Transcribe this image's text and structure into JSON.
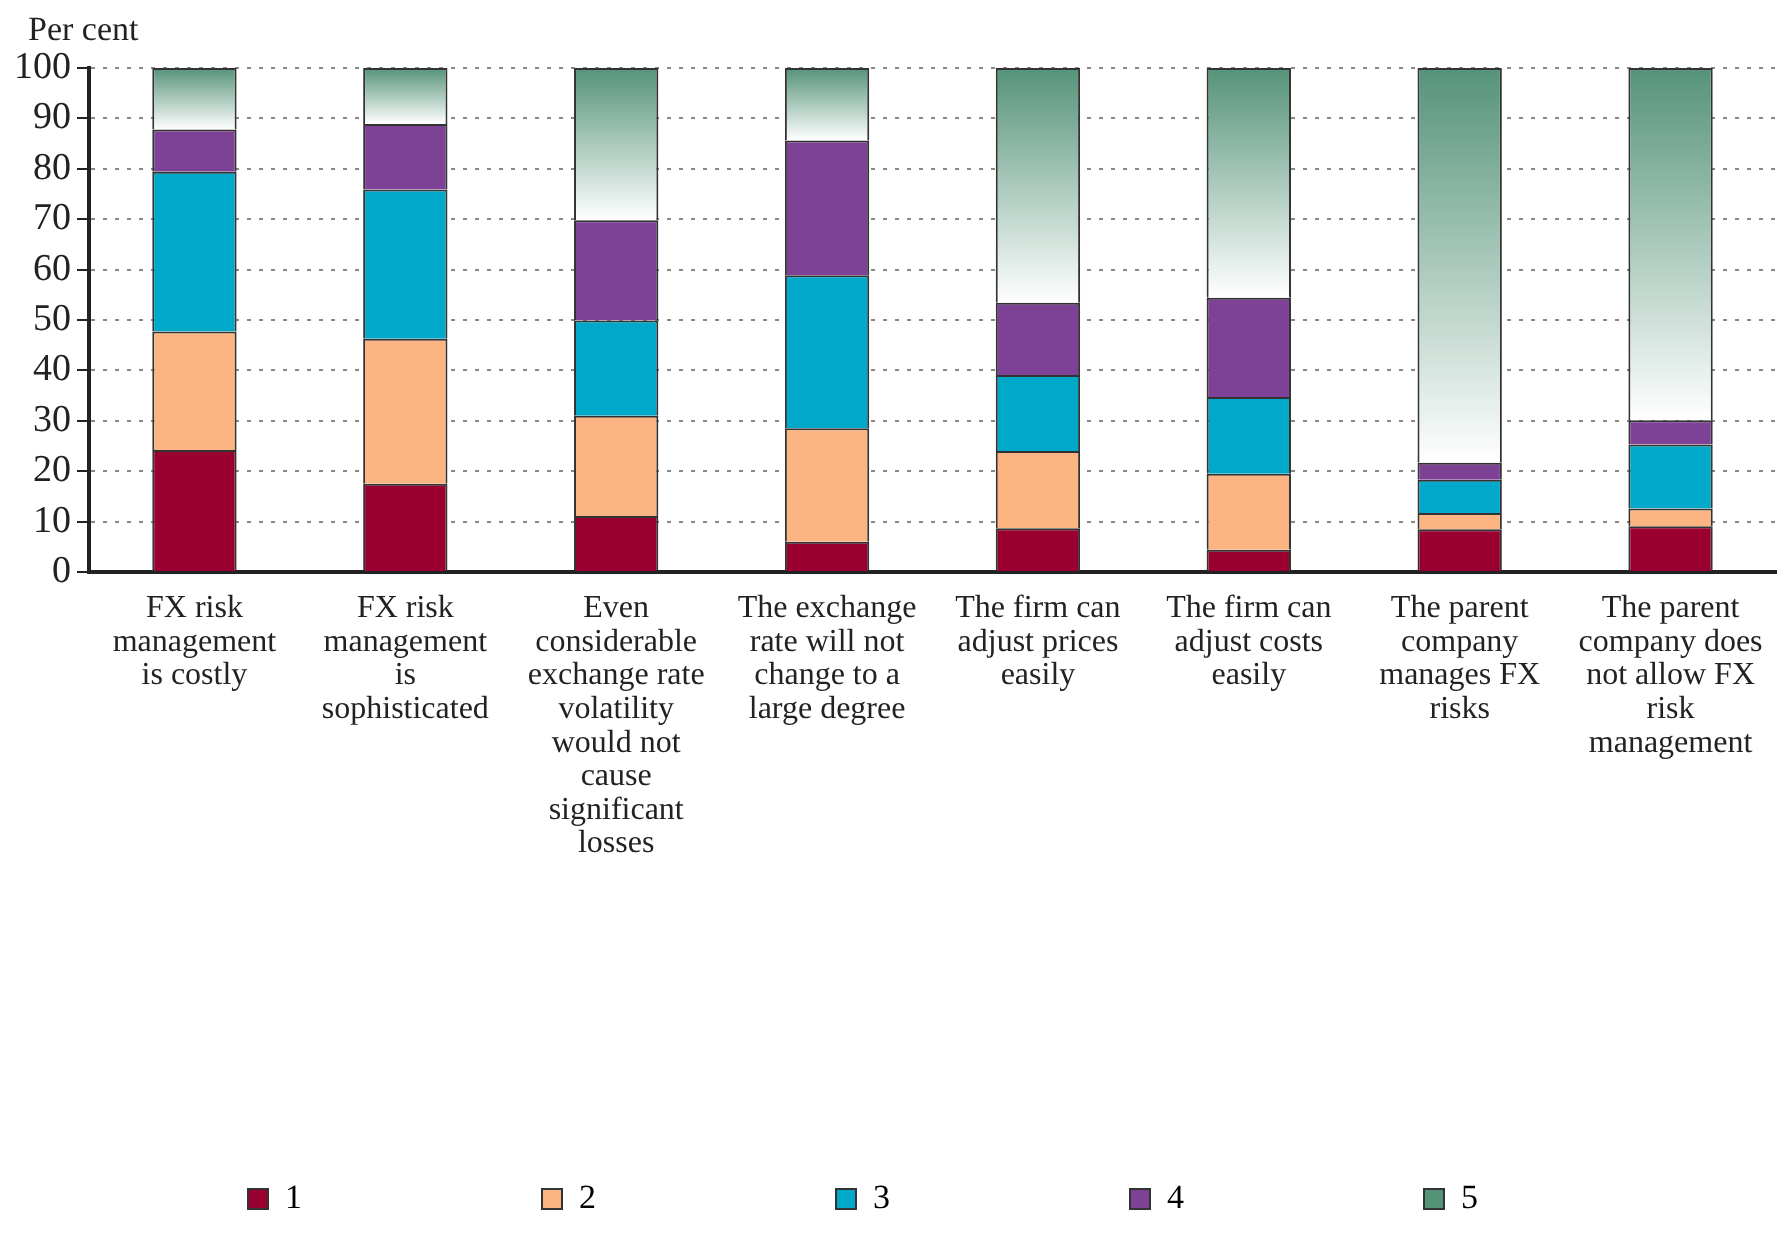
{
  "chart_data": {
    "type": "bar",
    "stacked": true,
    "ylabel": "Per cent",
    "categories": [
      "FX risk management is costly",
      "FX risk management is sophisticated",
      "Even considerable exchange rate volatility would not cause significant losses",
      "The exchange rate will not change to a large degree",
      "The firm can adjust prices easily",
      "The firm can adjust costs easily",
      "The parent company manages FX risks",
      "The parent company does not allow FX risk management"
    ],
    "series": [
      {
        "name": "1",
        "color": "#990030",
        "values": [
          24.2,
          17.5,
          11.1,
          6.0,
          8.7,
          4.4,
          8.5,
          9.1
        ]
      },
      {
        "name": "2",
        "color": "#fbb482",
        "values": [
          23.5,
          28.8,
          19.9,
          22.5,
          15.3,
          15.1,
          3.2,
          3.5
        ]
      },
      {
        "name": "3",
        "color": "#00a9c9",
        "values": [
          31.7,
          29.6,
          18.9,
          30.4,
          15.1,
          15.2,
          6.6,
          12.7
        ]
      },
      {
        "name": "4",
        "color": "#7d4196",
        "values": [
          8.4,
          13.0,
          19.9,
          26.7,
          14.3,
          19.7,
          3.4,
          4.8
        ]
      },
      {
        "name": "5",
        "color": "#559379",
        "values": [
          12.2,
          11.1,
          30.2,
          14.4,
          46.6,
          45.6,
          78.3,
          69.9
        ]
      }
    ],
    "ylim": [
      0,
      100
    ],
    "yticks": [
      0,
      10,
      20,
      30,
      40,
      50,
      60,
      70,
      80,
      90,
      100
    ],
    "grid": "y",
    "legend": "bottom"
  }
}
